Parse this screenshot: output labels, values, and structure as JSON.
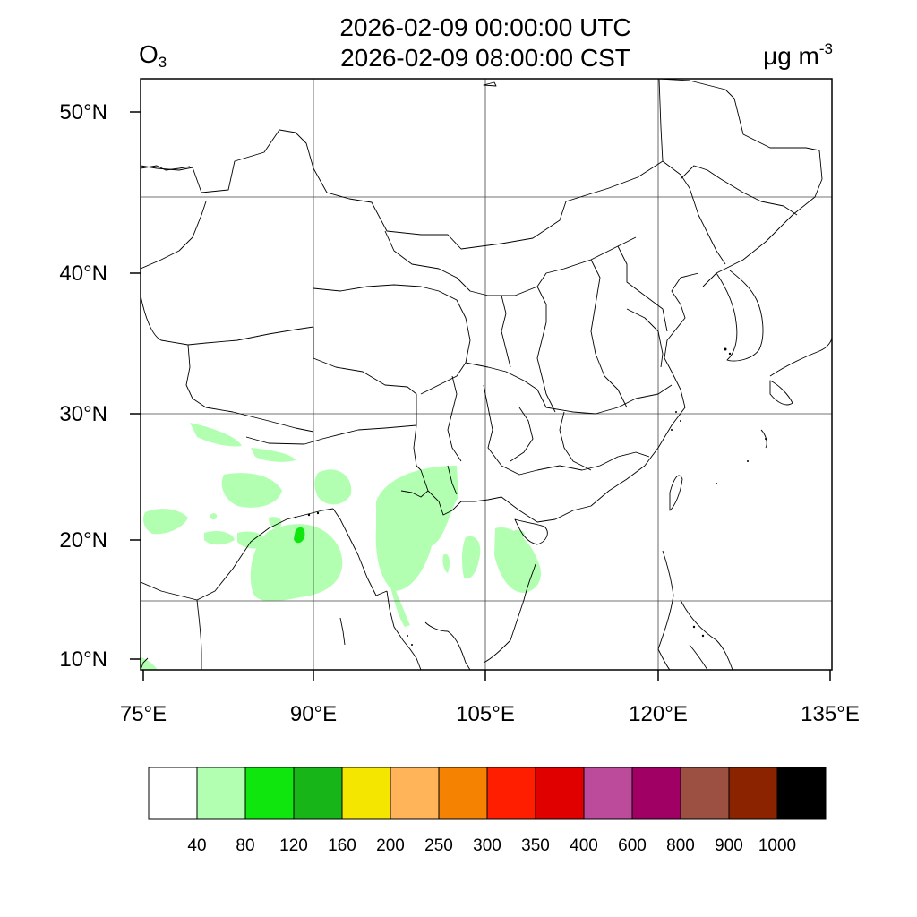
{
  "title": {
    "utc": "2026-02-09 00:00:00 UTC",
    "cst": "2026-02-09 08:00:00 CST"
  },
  "species": {
    "base": "O",
    "subscript": "3"
  },
  "units": {
    "base": "μg m",
    "superscript": "-3"
  },
  "map": {
    "lat_labels": [
      "50°N",
      "40°N",
      "30°N",
      "20°N",
      "10°N"
    ],
    "lon_labels": [
      "75°E",
      "90°E",
      "105°E",
      "120°E",
      "135°E"
    ],
    "fill_colors": {
      "band_40_80": "#b2ffb2",
      "band_80_120": "#0ee60e"
    }
  },
  "colorbar": {
    "colors": [
      "#ffffff",
      "#b2ffb2",
      "#0ee60e",
      "#17b517",
      "#f5e600",
      "#ffb45a",
      "#f58200",
      "#ff1e00",
      "#e10000",
      "#bd4b9c",
      "#a00064",
      "#9b5041",
      "#8c2300",
      "#000000"
    ],
    "labels": [
      "40",
      "80",
      "120",
      "160",
      "200",
      "250",
      "300",
      "350",
      "400",
      "600",
      "800",
      "900",
      "1000"
    ]
  }
}
